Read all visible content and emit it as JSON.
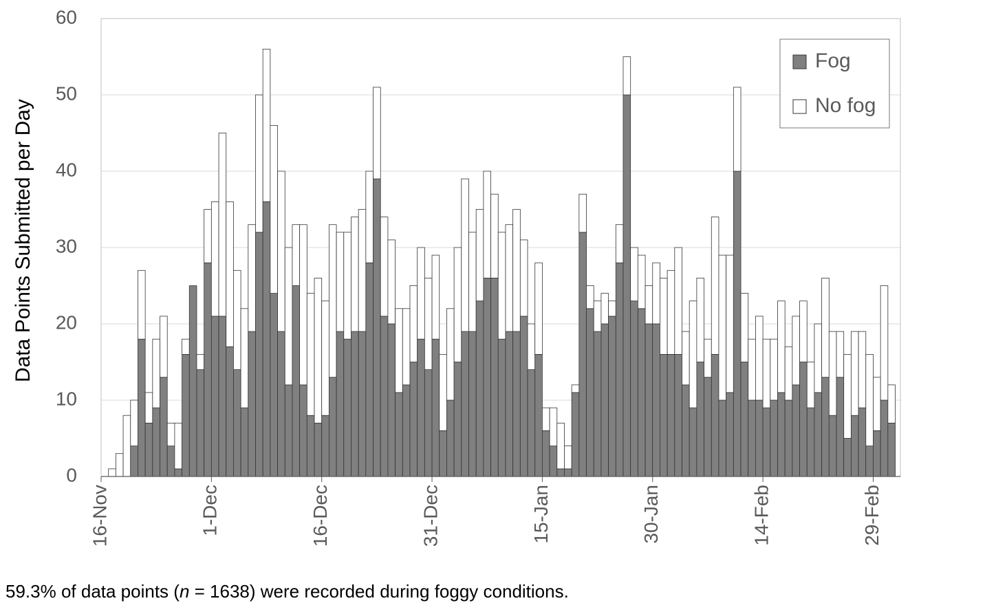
{
  "chart_data": {
    "type": "bar",
    "stacked": true,
    "y_label": "Data Points Submitted per Day",
    "categories": [
      "16-Nov",
      null,
      null,
      null,
      null,
      null,
      null,
      null,
      null,
      null,
      null,
      null,
      null,
      null,
      null,
      "1-Dec",
      null,
      null,
      null,
      null,
      null,
      null,
      null,
      null,
      null,
      null,
      null,
      null,
      null,
      null,
      "16-Dec",
      null,
      null,
      null,
      null,
      null,
      null,
      null,
      null,
      null,
      null,
      null,
      null,
      null,
      null,
      "31-Dec",
      null,
      null,
      null,
      null,
      null,
      null,
      null,
      null,
      null,
      null,
      null,
      null,
      null,
      null,
      "15-Jan",
      null,
      null,
      null,
      null,
      null,
      null,
      null,
      null,
      null,
      null,
      null,
      null,
      null,
      null,
      "30-Jan",
      null,
      null,
      null,
      null,
      null,
      null,
      null,
      null,
      null,
      null,
      null,
      null,
      null,
      null,
      "14-Feb",
      null,
      null,
      null,
      null,
      null,
      null,
      null,
      null,
      null,
      null,
      null,
      null,
      null,
      null,
      "29-Feb",
      null,
      null
    ],
    "series": [
      {
        "name": "Fog",
        "color": "#808080",
        "values": [
          0,
          0,
          0,
          0,
          4,
          18,
          7,
          9,
          13,
          4,
          1,
          16,
          25,
          14,
          28,
          21,
          21,
          17,
          14,
          9,
          19,
          32,
          36,
          24,
          19,
          12,
          25,
          12,
          8,
          7,
          8,
          13,
          19,
          18,
          19,
          19,
          28,
          39,
          21,
          20,
          11,
          12,
          15,
          18,
          14,
          18,
          6,
          10,
          15,
          19,
          19,
          23,
          26,
          26,
          18,
          19,
          19,
          21,
          14,
          16,
          6,
          4,
          1,
          1,
          11,
          32,
          22,
          19,
          20,
          21,
          28,
          50,
          23,
          22,
          20,
          20,
          16,
          16,
          16,
          12,
          9,
          15,
          13,
          16,
          10,
          11,
          40,
          15,
          10,
          10,
          9,
          10,
          11,
          10,
          12,
          15,
          9,
          11,
          13,
          8,
          13,
          5,
          8,
          9,
          4,
          6,
          10,
          7
        ]
      },
      {
        "name": "No fog",
        "color": "#ffffff",
        "values": [
          0,
          1,
          3,
          8,
          6,
          9,
          4,
          9,
          8,
          3,
          6,
          2,
          0,
          2,
          7,
          15,
          24,
          19,
          13,
          13,
          14,
          18,
          20,
          22,
          21,
          18,
          8,
          21,
          16,
          19,
          15,
          20,
          13,
          14,
          15,
          16,
          12,
          12,
          13,
          11,
          11,
          10,
          10,
          12,
          12,
          11,
          10,
          12,
          15,
          20,
          13,
          12,
          14,
          11,
          14,
          14,
          16,
          10,
          6,
          12,
          3,
          5,
          6,
          3,
          1,
          5,
          3,
          4,
          4,
          2,
          5,
          5,
          7,
          7,
          5,
          8,
          10,
          11,
          14,
          7,
          14,
          11,
          5,
          18,
          19,
          18,
          11,
          9,
          8,
          11,
          9,
          8,
          12,
          7,
          9,
          8,
          6,
          9,
          13,
          11,
          6,
          11,
          11,
          10,
          12,
          7,
          15,
          5
        ]
      }
    ],
    "ylim": [
      0,
      60
    ],
    "yticks": [
      0,
      10,
      20,
      30,
      40,
      50,
      60
    ],
    "grid": true,
    "legend": "upper right",
    "footnote": {
      "before": "59.3% of data points (",
      "italic": "n",
      "after": " = 1638) were recorded during foggy conditions."
    }
  }
}
